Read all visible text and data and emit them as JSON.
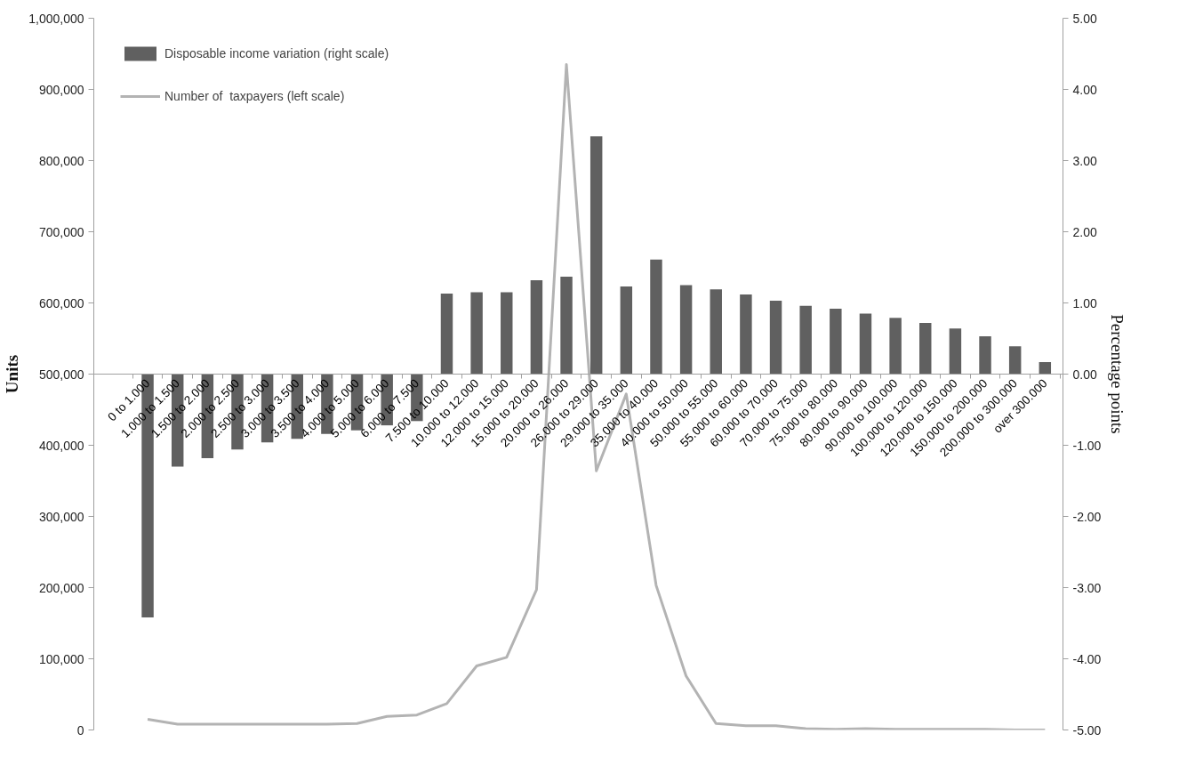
{
  "chart_data": {
    "type": "bar",
    "ylabel": "Units",
    "y2label": "Percentage points",
    "legend": "top left",
    "grid": false,
    "categories": [
      "0 to 1.000",
      "1.000 to 1.500",
      "1.500 to 2.000",
      "2.000 to 2.500",
      "2.500 to 3.000",
      "3.000 to 3.500",
      "3.500 to 4.000",
      "4.000 to 5.000",
      "5.000 to 6.000",
      "6.000 to 7.500",
      "7.500 to 10.000",
      "10.000 to 12.000",
      "12.000 to 15.000",
      "15.000 to 20.000",
      "20.000 to 26.000",
      "26.000 to 29.000",
      "29.000 to 35.000",
      "35.000 to 40.000",
      "40.000 to 50.000",
      "50.000 to 55.000",
      "55.000 to 60.000",
      "60.000 to 70.000",
      "70.000 to 75.000",
      "75.000 to 80.000",
      "80.000 to 90.000",
      "90.000 to 100.000",
      "100.000 to 120.000",
      "120.000 to 150.000",
      "150.000 to 200.000",
      "200.000 to 300.000",
      "over 300.000"
    ],
    "series": [
      {
        "name": "Disposable income variation (right scale)",
        "axis": "y2",
        "color": "#606060",
        "values": [
          -3.42,
          -1.3,
          -1.18,
          -1.06,
          -0.96,
          -0.91,
          -0.84,
          -0.79,
          -0.72,
          -0.66,
          1.13,
          1.15,
          1.15,
          1.32,
          1.37,
          3.34,
          1.23,
          1.61,
          1.25,
          1.19,
          1.12,
          1.03,
          0.96,
          0.92,
          0.85,
          0.79,
          0.72,
          0.64,
          0.53,
          0.39,
          0.17
        ]
      },
      {
        "name": "Number of  taxpayers (left scale)",
        "type": "line",
        "color": "#b3b3b3",
        "values": [
          15000,
          8000,
          8000,
          8000,
          8000,
          8000,
          8000,
          9000,
          19000,
          21000,
          37000,
          90000,
          102000,
          197000,
          935000,
          364000,
          472000,
          203000,
          76000,
          9000,
          6000,
          6000,
          2000,
          1000,
          2000,
          1000,
          1000,
          1000,
          1000,
          0,
          0
        ]
      }
    ],
    "ylim": [
      0,
      1000000
    ],
    "yticks": [
      0,
      {
        "value": 100000,
        "label": "100,000"
      },
      {
        "value": 200000,
        "label": "200,000"
      },
      {
        "value": 300000,
        "label": "300,000"
      },
      {
        "value": 400000,
        "label": "400,000"
      },
      {
        "value": 500000,
        "label": "500,000"
      },
      {
        "value": 600000,
        "label": "600,000"
      },
      {
        "value": 700000,
        "label": "700,000"
      },
      {
        "value": 800000,
        "label": "800,000"
      },
      {
        "value": 900000,
        "label": "900,000"
      },
      {
        "value": 1000000,
        "label": "1,000,000"
      }
    ],
    "y2lim": [
      -5,
      5
    ],
    "y2ticks": [
      {
        "value": -5,
        "label": "-5.00"
      },
      {
        "value": -4,
        "label": "-4.00"
      },
      {
        "value": -3,
        "label": "-3.00"
      },
      {
        "value": -2,
        "label": "-2.00"
      },
      {
        "value": -1,
        "label": "-1.00"
      },
      {
        "value": 0,
        "label": "0.00"
      },
      {
        "value": 1,
        "label": "1.00"
      },
      {
        "value": 2,
        "label": "2.00"
      },
      {
        "value": 3,
        "label": "3.00"
      },
      {
        "value": 4,
        "label": "4.00"
      },
      {
        "value": 5,
        "label": "5.00"
      }
    ]
  }
}
